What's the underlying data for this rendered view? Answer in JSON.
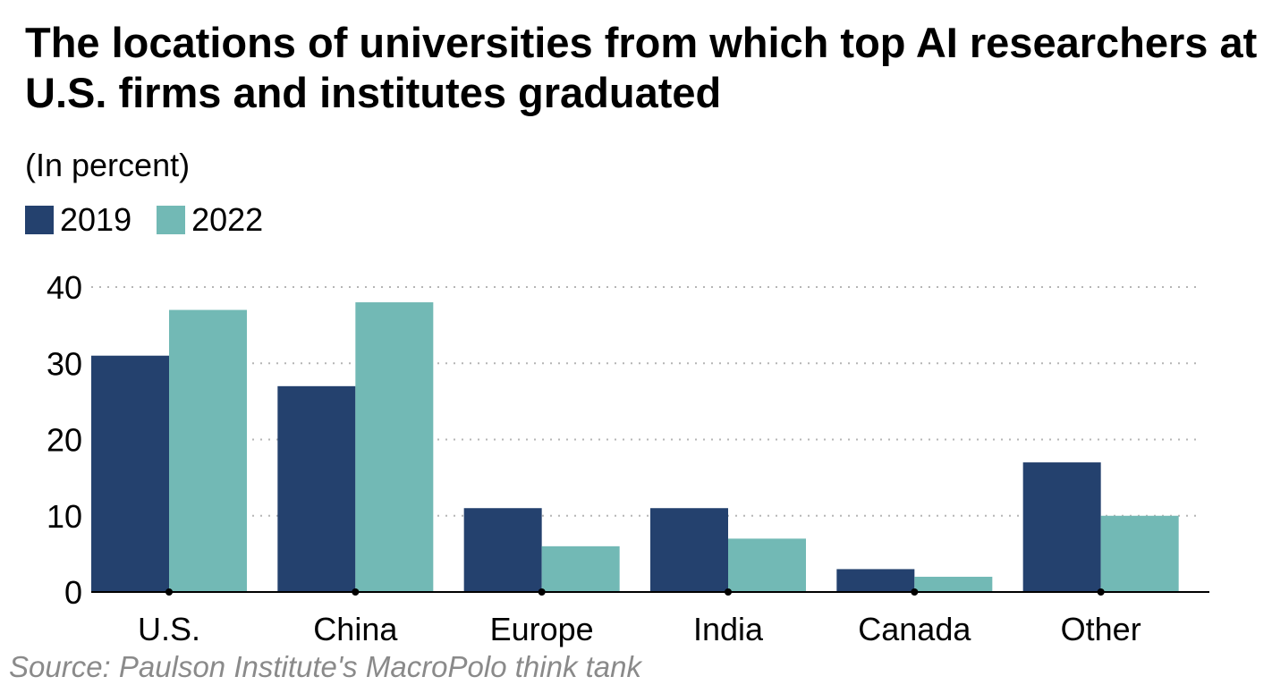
{
  "chart_data": {
    "type": "bar",
    "title": "The locations of universities from which top AI researchers at U.S. firms and institutes graduated",
    "subtitle": "(In percent)",
    "categories": [
      "U.S.",
      "China",
      "Europe",
      "India",
      "Canada",
      "Other"
    ],
    "series": [
      {
        "name": "2019",
        "color": "#24416e",
        "values": [
          31,
          27,
          11,
          11,
          3,
          17
        ]
      },
      {
        "name": "2022",
        "color": "#72b9b5",
        "values": [
          37,
          38,
          6,
          7,
          2,
          10
        ]
      }
    ],
    "yticks": [
      0,
      10,
      20,
      30,
      40
    ],
    "ylim": [
      0,
      40
    ],
    "grid": true,
    "legend_position": "top-left",
    "source": "Source: Paulson Institute's MacroPolo think tank"
  }
}
